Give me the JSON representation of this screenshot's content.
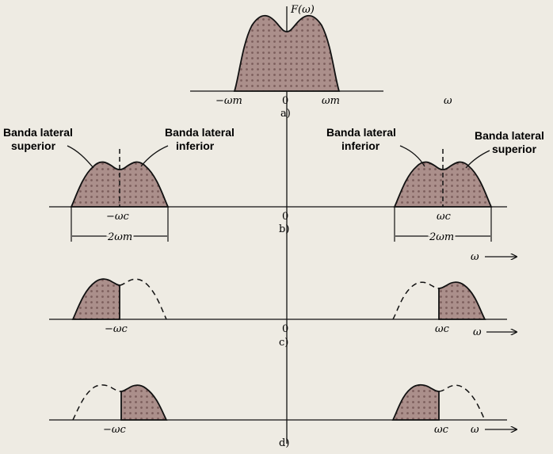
{
  "figure": {
    "panel_a": {
      "function_label": "F(ω)",
      "left_tick": "−ωm",
      "right_tick": "ωm",
      "origin": "0",
      "axis": "ω",
      "caption": "a)"
    },
    "panel_b": {
      "upper_left": [
        "Banda lateral",
        "superior"
      ],
      "inner_left": [
        "Banda lateral",
        "inferior"
      ],
      "inner_right": [
        "Banda lateral",
        "inferior"
      ],
      "upper_right": [
        "Banda lateral",
        "superior"
      ],
      "left_carrier": "−ωc",
      "right_carrier": "ωc",
      "left_width": "2ωm",
      "right_width": "2ωm",
      "origin": "0",
      "caption": "b)",
      "axis": "ω"
    },
    "panel_c": {
      "left_carrier": "−ωc",
      "right_carrier": "ωc",
      "origin": "0",
      "caption": "c)",
      "axis": "ω"
    },
    "panel_d": {
      "left_carrier": "−ωc",
      "right_carrier": "ωc",
      "caption": "d)",
      "axis": "ω"
    }
  },
  "colors": {
    "background": "#eeebe3",
    "ink": "#111111",
    "fill": "#a98c89",
    "fill_dot": "#7c5e5c"
  }
}
